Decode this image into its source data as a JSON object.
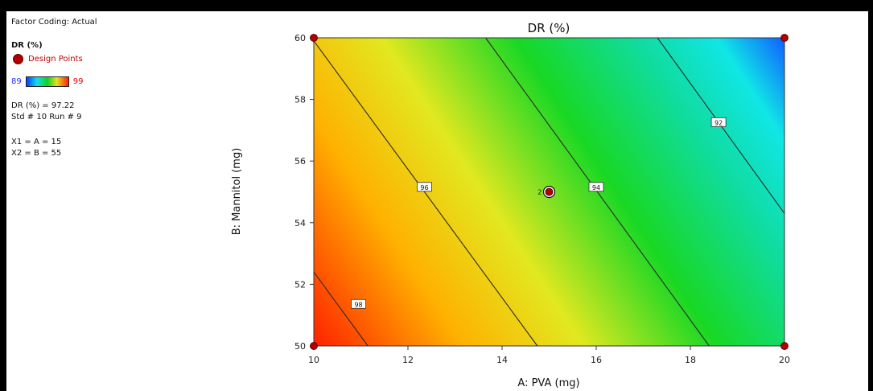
{
  "panel": {
    "factor_coding": "Factor Coding: Actual",
    "response_name": "DR (%)",
    "design_points_label": "Design Points",
    "scale_min": "89",
    "scale_max": "99",
    "current_value": "DR (%) = 97.22",
    "std_run": "Std # 10 Run # 9",
    "x1": "X1 = A = 15",
    "x2": "X2 = B = 55"
  },
  "colors": {
    "low": "#0a3cff",
    "mid": "#10d020",
    "high": "#ff2000",
    "design_point": "#b00000",
    "contour_line": "#2a2a2a"
  },
  "chart_data": {
    "type": "contour",
    "title": "DR (%)",
    "xlabel": "A: PVA (mg)",
    "ylabel": "B: Mannitol (mg)",
    "xlim": [
      10,
      20
    ],
    "ylim": [
      50,
      60
    ],
    "x_ticks": [
      10,
      12,
      14,
      16,
      18,
      20
    ],
    "y_ticks": [
      50,
      52,
      54,
      56,
      58,
      60
    ],
    "color_range": [
      89,
      99
    ],
    "contours": [
      {
        "level": 98,
        "label": "98",
        "points": [
          [
            10,
            52.4
          ],
          [
            11.15,
            50
          ]
        ],
        "label_at": [
          10.95,
          51.35
        ]
      },
      {
        "level": 96,
        "label": "96",
        "points": [
          [
            10,
            59.9
          ],
          [
            14.75,
            50
          ]
        ],
        "label_at": [
          12.35,
          55.15
        ]
      },
      {
        "level": 94,
        "label": "94",
        "points": [
          [
            13.65,
            60
          ],
          [
            18.4,
            50
          ]
        ],
        "label_at": [
          16.0,
          55.15
        ]
      },
      {
        "level": 92,
        "label": "92",
        "points": [
          [
            17.3,
            60
          ],
          [
            20,
            54.3
          ]
        ],
        "label_at": [
          18.6,
          57.25
        ]
      }
    ],
    "design_points": [
      {
        "x": 10,
        "y": 50
      },
      {
        "x": 10,
        "y": 60
      },
      {
        "x": 20,
        "y": 50
      },
      {
        "x": 20,
        "y": 60
      },
      {
        "x": 15,
        "y": 55,
        "label": "2",
        "selected": true
      }
    ]
  }
}
